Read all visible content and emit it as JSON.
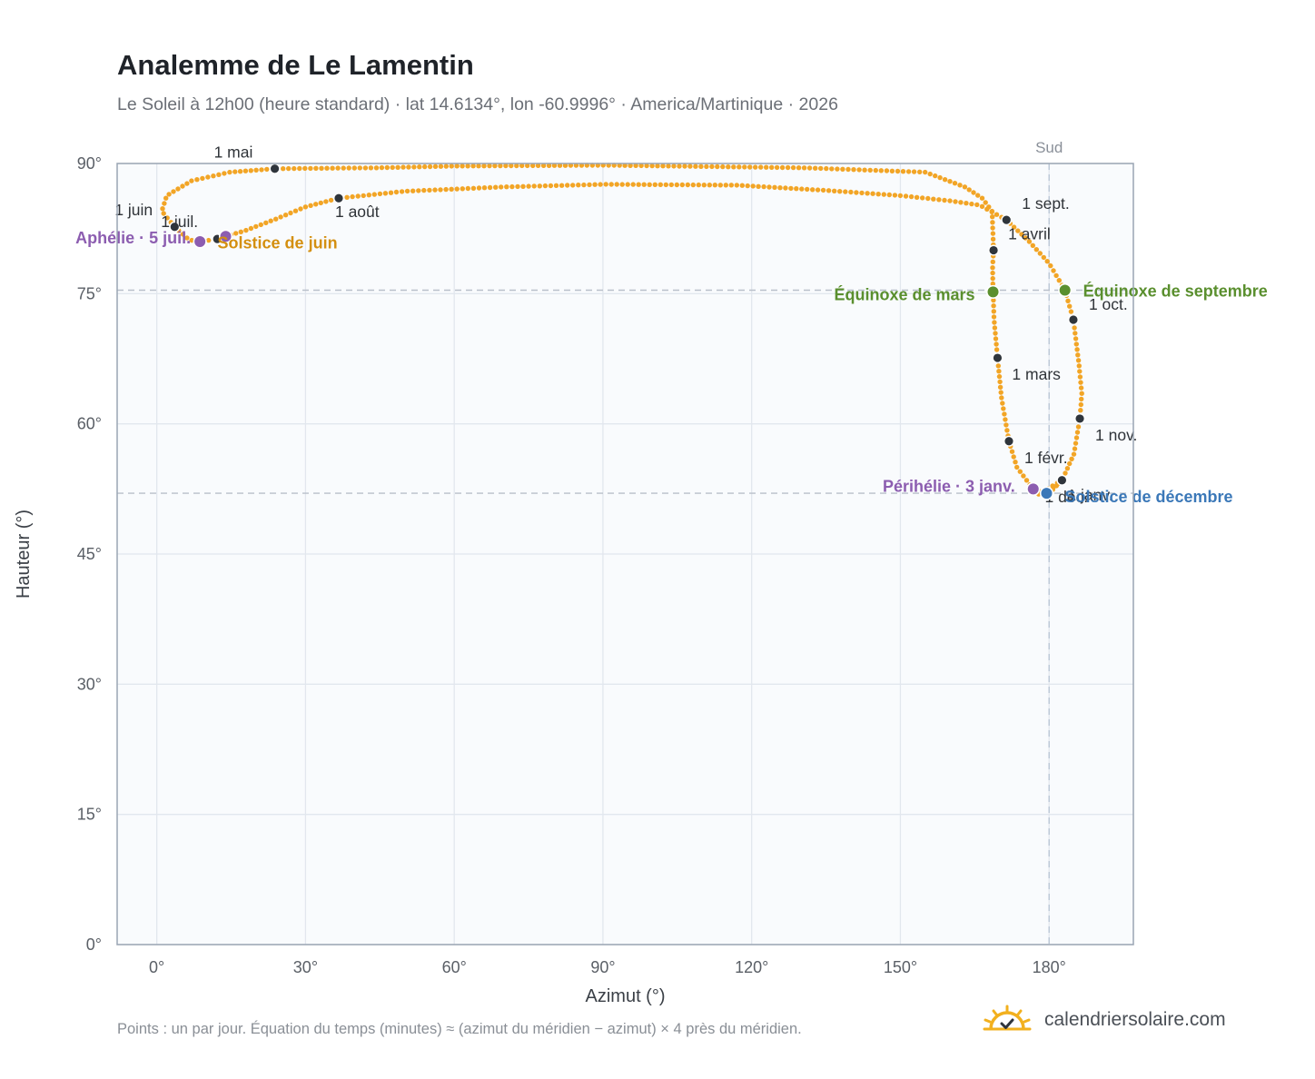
{
  "header": {
    "title": "Analemme de Le Lamentin",
    "subtitle": "Le Soleil à 12h00 (heure standard) · lat 14.6134°, lon -60.9996° · America/Martinique · 2026"
  },
  "footer": {
    "note": "Points : un par jour. Équation du temps (minutes) ≈ (azimut du méridien − azimut) × 4 près du méridien.",
    "brand": "calendriersolaire.com"
  },
  "colors": {
    "analemma": "#f2a526",
    "month_marker": "#2f353c",
    "equinox": "#5a8f2e",
    "june_solstice_label": "#d48f10",
    "december_solstice": "#3b78b8",
    "apsis": "#8c5db0",
    "plot_bg": "#f9fbfd",
    "grid": "#e2e7ee",
    "frame": "#9aa5b3"
  },
  "chart_data": {
    "type": "scatter",
    "xlabel": "Azimut (°)",
    "ylabel": "Hauteur (°)",
    "xlim": [
      -8,
      197
    ],
    "ylim": [
      0,
      90
    ],
    "xticks": [
      0,
      30,
      60,
      90,
      120,
      150,
      180
    ],
    "yticks": [
      0,
      15,
      30,
      45,
      60,
      75,
      90
    ],
    "tick_suffix": "°",
    "grid": true,
    "meridian": {
      "azimuth": 180,
      "label": "Sud"
    },
    "reference_altitudes": [
      75.4,
      52.0
    ],
    "month_markers": [
      {
        "label": "1 janv.",
        "az": 182.6,
        "alt": 53.5
      },
      {
        "label": "1 févr.",
        "az": 171.9,
        "alt": 58.0
      },
      {
        "label": "1 mars",
        "az": 169.6,
        "alt": 67.6
      },
      {
        "label": "1 avril",
        "az": 168.8,
        "alt": 80.0
      },
      {
        "label": "1 mai",
        "az": 23.8,
        "alt": 89.4
      },
      {
        "label": "1 juin",
        "az": 3.6,
        "alt": 82.7
      },
      {
        "label": "1 juil.",
        "az": 12.2,
        "alt": 81.3
      },
      {
        "label": "1 août",
        "az": 36.7,
        "alt": 86.0
      },
      {
        "label": "1 sept.",
        "az": 171.4,
        "alt": 83.5
      },
      {
        "label": "1 oct.",
        "az": 184.9,
        "alt": 72.0
      },
      {
        "label": "1 nov.",
        "az": 186.2,
        "alt": 60.6
      },
      {
        "label": "1 déc.",
        "az": 179.5,
        "alt": 52.0
      }
    ],
    "events": [
      {
        "label": "Équinoxe de mars",
        "az": 168.7,
        "alt": 75.2,
        "kind": "equinox"
      },
      {
        "label": "Équinoxe de septembre",
        "az": 183.2,
        "alt": 75.4,
        "kind": "equinox"
      },
      {
        "label": "Solstice de juin",
        "az": 13.9,
        "alt": 81.6,
        "kind": "june_solstice"
      },
      {
        "label": "Solstice de décembre",
        "az": 179.5,
        "alt": 52.0,
        "kind": "december_solstice"
      },
      {
        "label": "Aphélie · 5 juil.",
        "az": 8.7,
        "alt": 81.0,
        "kind": "apsis"
      },
      {
        "label": "Périhélie · 3 janv.",
        "az": 176.8,
        "alt": 52.5,
        "kind": "apsis"
      }
    ],
    "path_keypoints": [
      {
        "az": 177.9,
        "alt": 51.9
      },
      {
        "az": 182.6,
        "alt": 53.5
      },
      {
        "az": 179.5,
        "alt": 52.0
      },
      {
        "az": 176.8,
        "alt": 52.5
      },
      {
        "az": 173.5,
        "alt": 55.0
      },
      {
        "az": 171.9,
        "alt": 58.0
      },
      {
        "az": 170.4,
        "alt": 63.0
      },
      {
        "az": 169.6,
        "alt": 67.6
      },
      {
        "az": 168.9,
        "alt": 72.0
      },
      {
        "az": 168.7,
        "alt": 75.2
      },
      {
        "az": 168.6,
        "alt": 78.0
      },
      {
        "az": 168.8,
        "alt": 80.0
      },
      {
        "az": 168.5,
        "alt": 84.5
      },
      {
        "az": 166.5,
        "alt": 86.0
      },
      {
        "az": 163.0,
        "alt": 87.3
      },
      {
        "az": 155.0,
        "alt": 89.0
      },
      {
        "az": 130.6,
        "alt": 89.5
      },
      {
        "az": 90.6,
        "alt": 89.8
      },
      {
        "az": 60.0,
        "alt": 89.7
      },
      {
        "az": 44.3,
        "alt": 89.5
      },
      {
        "az": 23.8,
        "alt": 89.4
      },
      {
        "az": 14.7,
        "alt": 89.0
      },
      {
        "az": 7.0,
        "alt": 88.0
      },
      {
        "az": 2.0,
        "alt": 86.3
      },
      {
        "az": 1.0,
        "alt": 84.5
      },
      {
        "az": 3.6,
        "alt": 82.7
      },
      {
        "az": 6.5,
        "alt": 81.2
      },
      {
        "az": 8.7,
        "alt": 81.0
      },
      {
        "az": 12.2,
        "alt": 81.3
      },
      {
        "az": 13.9,
        "alt": 81.6
      },
      {
        "az": 18.0,
        "alt": 82.3
      },
      {
        "az": 24.0,
        "alt": 83.6
      },
      {
        "az": 30.0,
        "alt": 85.0
      },
      {
        "az": 36.7,
        "alt": 86.0
      },
      {
        "az": 50.0,
        "alt": 86.8
      },
      {
        "az": 70.0,
        "alt": 87.3
      },
      {
        "az": 90.6,
        "alt": 87.6
      },
      {
        "az": 117.0,
        "alt": 87.5
      },
      {
        "az": 135.0,
        "alt": 86.9
      },
      {
        "az": 150.0,
        "alt": 86.3
      },
      {
        "az": 160.0,
        "alt": 85.7
      },
      {
        "az": 166.0,
        "alt": 85.2
      },
      {
        "az": 171.4,
        "alt": 83.5
      },
      {
        "az": 176.0,
        "alt": 81.0
      },
      {
        "az": 180.0,
        "alt": 78.5
      },
      {
        "az": 183.2,
        "alt": 75.4
      },
      {
        "az": 184.9,
        "alt": 72.0
      },
      {
        "az": 186.0,
        "alt": 67.0
      },
      {
        "az": 186.6,
        "alt": 63.5
      },
      {
        "az": 186.2,
        "alt": 60.6
      },
      {
        "az": 185.0,
        "alt": 56.5
      },
      {
        "az": 182.6,
        "alt": 53.5
      },
      {
        "az": 180.0,
        "alt": 52.0
      },
      {
        "az": 177.9,
        "alt": 51.9
      }
    ]
  }
}
